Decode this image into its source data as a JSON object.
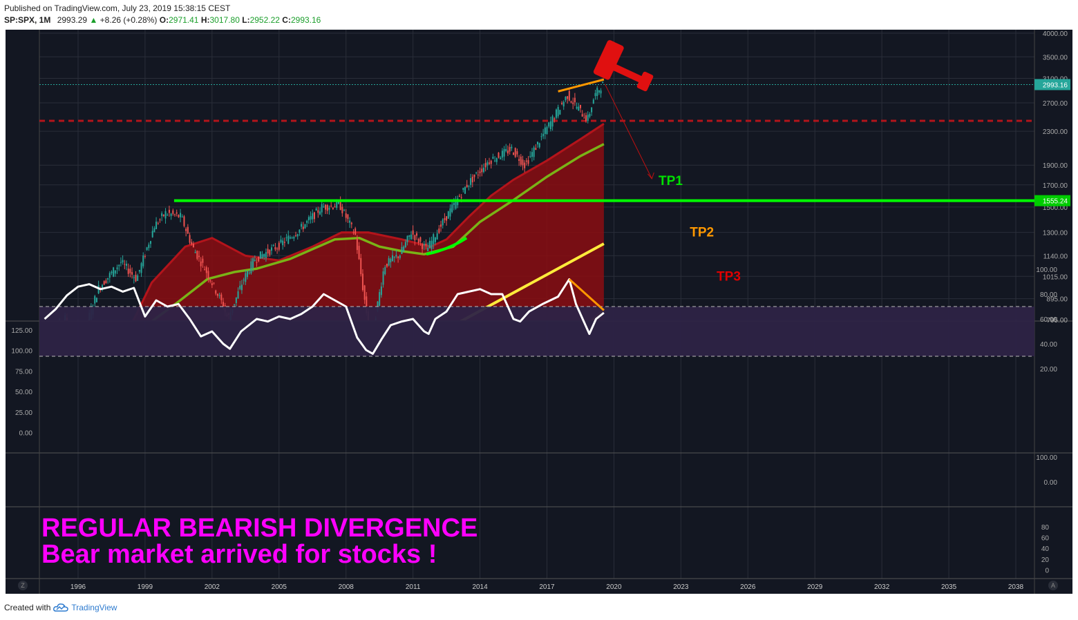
{
  "header": {
    "published": "Published on TradingView.com, July 23, 2019 15:38:15 CEST",
    "symbol": "SP:SPX, 1M",
    "last": "2993.29",
    "change": "+8.26 (+0.28%)",
    "o_label": "O:",
    "o": "2971.41",
    "h_label": "H:",
    "h": "3017.80",
    "l_label": "L:",
    "l": "2952.22",
    "c_label": "C:",
    "c": "2993.16"
  },
  "footer": {
    "created": "Created with",
    "brand": "TradingView"
  },
  "colors": {
    "background": "#131722",
    "grid": "#2a2e39",
    "price_up": "#26a69a",
    "price_down": "#ef5350",
    "green_line": "#00ff00",
    "orange": "#ff9800",
    "yellow": "#ffeb3b",
    "red": "#e00000",
    "magenta": "#ff00ff",
    "fill": "#8b0d12",
    "sma": "#7ab317"
  },
  "chart_data": {
    "type": "line",
    "title": "",
    "x_ticks": [
      "1996",
      "1999",
      "2002",
      "2005",
      "2008",
      "2011",
      "2014",
      "2017",
      "2020",
      "2023",
      "2026",
      "2029",
      "2032",
      "2035",
      "2038"
    ],
    "price_axis_ticks": [
      "4000.00",
      "3500.00",
      "3100.00",
      "2700.00",
      "2300.00",
      "1900.00",
      "1700.00",
      "1500.00",
      "1300.00",
      "1140.00",
      "1015.00",
      "895.00",
      "795.00"
    ],
    "last_price_label": "2993.16",
    "level_label": "1555.24",
    "price_series": {
      "name": "",
      "x": [
        1994.5,
        1995.5,
        1996.0,
        1997.0,
        1998.0,
        1998.7,
        1999.5,
        2000.0,
        2000.7,
        2001.2,
        2001.8,
        2002.5,
        2002.8,
        2003.5,
        2004.0,
        2005.0,
        2006.0,
        2007.0,
        2007.8,
        2008.5,
        2008.9,
        2009.2,
        2009.8,
        2010.5,
        2011.0,
        2011.7,
        2012.5,
        2013.5,
        2014.5,
        2015.5,
        2016.1,
        2017.0,
        2018.0,
        2018.9,
        2019.2,
        2019.55
      ],
      "y": [
        700,
        800,
        650,
        950,
        1100,
        1000,
        1350,
        1450,
        1420,
        1200,
        1050,
        880,
        800,
        1000,
        1120,
        1200,
        1320,
        1500,
        1520,
        1280,
        900,
        700,
        1080,
        1150,
        1300,
        1180,
        1400,
        1700,
        1950,
        2080,
        1900,
        2300,
        2820,
        2450,
        2800,
        2993
      ]
    },
    "sma_series": {
      "name": "",
      "x": [
        1999.2,
        2000.5,
        2001.8,
        2003.0,
        2004.0,
        2005.5,
        2007.5,
        2008.6,
        2009.5,
        2010.5,
        2011.5,
        2012.8,
        2014.0,
        2015.5,
        2017.0,
        2018.5,
        2019.55
      ],
      "y": [
        780,
        880,
        1000,
        1040,
        1060,
        1120,
        1250,
        1260,
        1200,
        1170,
        1150,
        1200,
        1380,
        1560,
        1780,
        2000,
        2140
      ]
    },
    "channel_upper": {
      "x": [
        1998.0,
        1999.3,
        2000.8,
        2002.0,
        2003.5,
        2005.0,
        2006.5,
        2007.8,
        2009.0,
        2010.5,
        2011.8,
        2012.5,
        2013.5,
        2014.5,
        2015.5,
        2017.0,
        2018.5,
        2019.55
      ],
      "y": [
        700,
        980,
        1200,
        1260,
        1140,
        1110,
        1200,
        1300,
        1300,
        1250,
        1200,
        1250,
        1420,
        1600,
        1750,
        1950,
        2200,
        2400
      ]
    },
    "resistance_level": {
      "y": 1555.24,
      "x_start": 2000.3
    },
    "dashed_level": {
      "y": 2440
    },
    "yellow_line": {
      "x": [
        2013.0,
        2019.55
      ],
      "y": [
        780,
        1220
      ]
    },
    "orange_trendline": {
      "x": [
        2017.5,
        2019.55
      ],
      "y": [
        2880,
        3080
      ]
    },
    "orange_low_line": {
      "x": [
        2018.7,
        2019.55
      ],
      "y": [
        760,
        840
      ]
    },
    "projection_arrow": {
      "x": [
        2019.6,
        2021.7
      ],
      "y": [
        3000,
        1760
      ]
    },
    "targets": [
      {
        "label": "TP1",
        "color": "#00e000",
        "x": 2022.0,
        "y": 1700
      },
      {
        "label": "TP2",
        "color": "#ff9800",
        "x": 2023.4,
        "y": 1270
      },
      {
        "label": "TP3",
        "color": "#e00000",
        "x": 2024.6,
        "y": 990
      }
    ],
    "rsi_left_ticks": [
      "125.00",
      "100.00",
      "75.00",
      "50.00",
      "25.00",
      "0.00"
    ],
    "rsi_right_ticks": [
      "100.00",
      "80.00",
      "60.00",
      "40.00",
      "20.00"
    ],
    "rsi_band": [
      30,
      70
    ],
    "rsi_series": {
      "name": "",
      "x": [
        1994.5,
        1995.0,
        1995.5,
        1996.0,
        1996.5,
        1997.0,
        1997.5,
        1998.0,
        1998.5,
        1999.0,
        1999.5,
        2000.0,
        2000.5,
        2001.0,
        2001.5,
        2002.0,
        2002.5,
        2002.8,
        2003.3,
        2004.0,
        2004.5,
        2005.0,
        2005.5,
        2006.0,
        2006.5,
        2007.0,
        2007.5,
        2008.0,
        2008.5,
        2008.9,
        2009.2,
        2009.6,
        2010.0,
        2010.5,
        2011.0,
        2011.5,
        2011.7,
        2012.0,
        2012.5,
        2013.0,
        2013.5,
        2014.0,
        2014.5,
        2015.0,
        2015.5,
        2015.8,
        2016.2,
        2016.8,
        2017.5,
        2018.0,
        2018.3,
        2018.7,
        2018.9,
        2019.2,
        2019.55
      ],
      "y": [
        60,
        68,
        79,
        86,
        88,
        84,
        86,
        82,
        85,
        62,
        75,
        70,
        72,
        60,
        46,
        50,
        40,
        36,
        50,
        60,
        58,
        62,
        60,
        64,
        70,
        80,
        75,
        70,
        45,
        35,
        32,
        44,
        55,
        58,
        60,
        50,
        48,
        60,
        66,
        80,
        82,
        84,
        80,
        80,
        60,
        58,
        66,
        72,
        78,
        92,
        72,
        56,
        48,
        60,
        65
      ]
    },
    "rsi_divergence": {
      "x": [
        2018.0,
        2019.55
      ],
      "y": [
        92,
        67
      ]
    },
    "lower_pane_ticks": [
      "100.00",
      "0.00"
    ],
    "bottom_pane_ticks": [
      "80",
      "60",
      "40",
      "20",
      "0"
    ]
  },
  "annotation": {
    "line1": "REGULAR BEARISH DIVERGENCE",
    "line2": "Bear market arrived for stocks !"
  },
  "icons": {
    "gavel": "gavel-icon",
    "brand": "tradingview-cloud-icon"
  },
  "corner_left": "Z",
  "corner_right": "A"
}
